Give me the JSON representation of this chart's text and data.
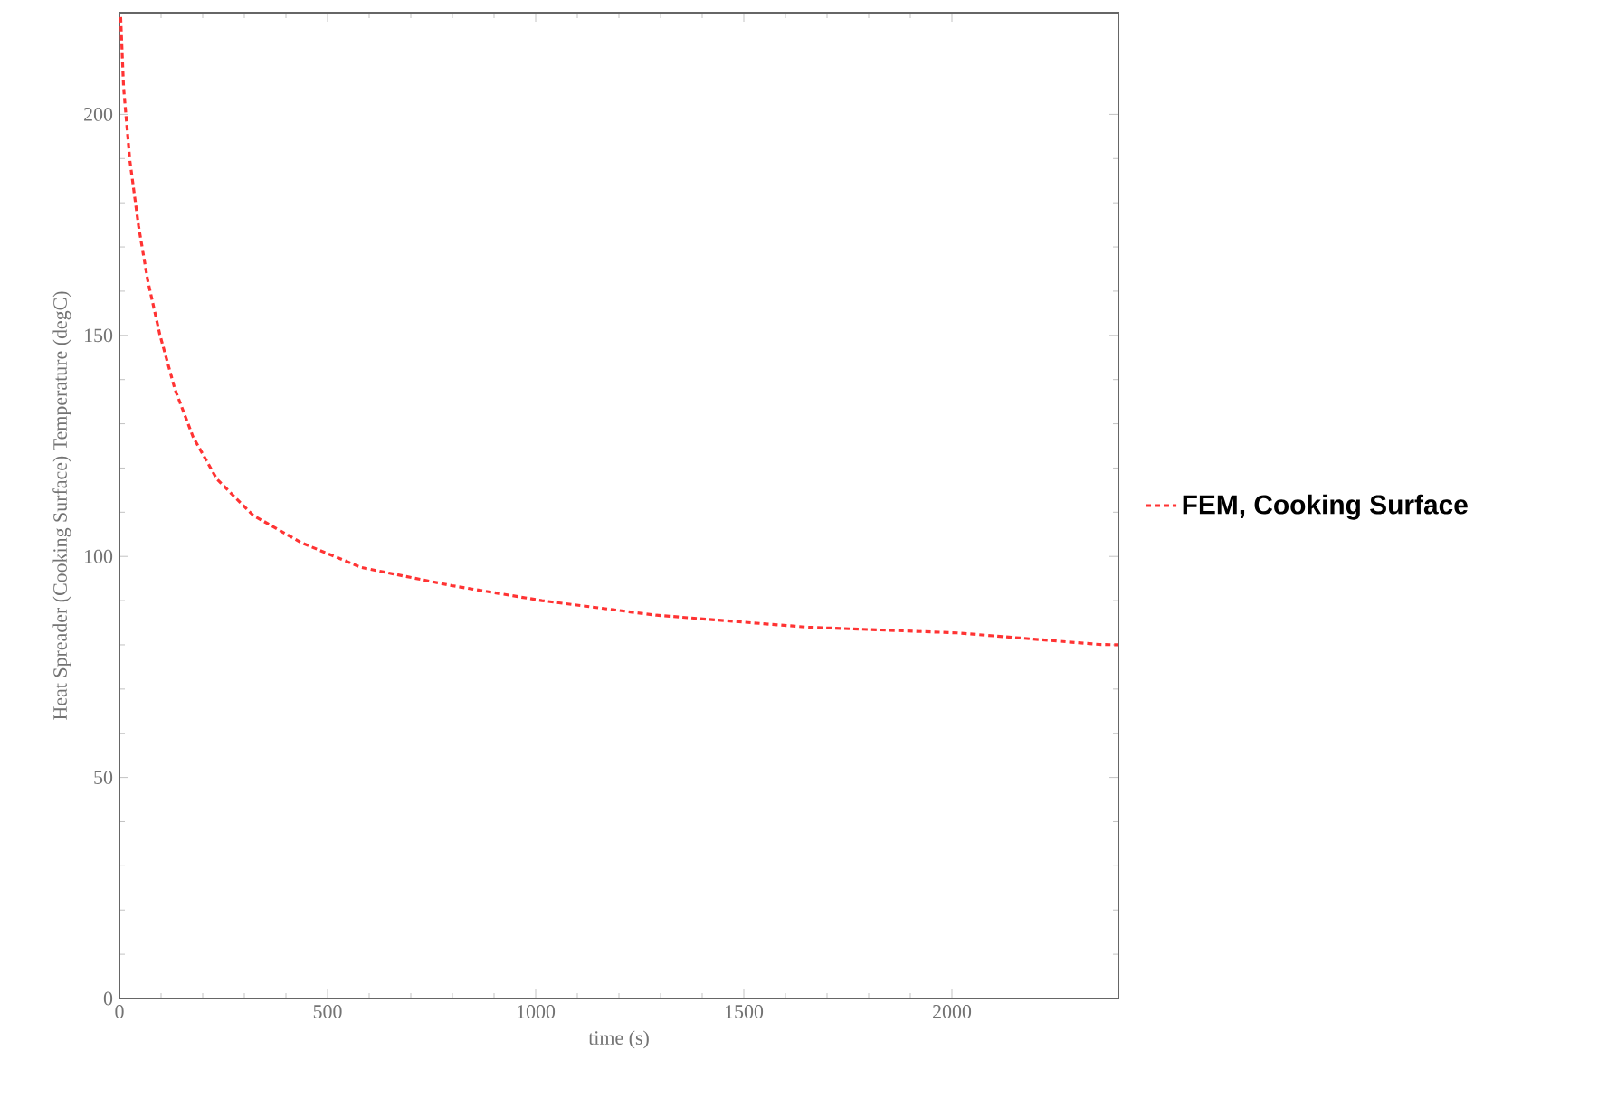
{
  "chart_data": {
    "type": "line",
    "xlabel": "time (s)",
    "ylabel": "Heat Spreader (Cooking Surface) Temperature (degC)",
    "x": [
      3,
      10,
      25,
      46,
      68,
      97,
      133,
      177,
      234,
      321,
      437,
      581,
      798,
      1015,
      1290,
      1651,
      2013,
      2353,
      2400
    ],
    "series": [
      {
        "name": "FEM, Cooking Surface",
        "color": "#ff3333",
        "values": [
          222,
          206,
          189.6,
          174.7,
          162.4,
          150.2,
          137.9,
          127,
          117.5,
          109.3,
          103.1,
          97.5,
          93.4,
          90,
          86.7,
          84,
          82.7,
          80.1,
          80
        ]
      }
    ],
    "xlim": [
      0,
      2400
    ],
    "ylim": [
      0,
      223
    ],
    "xticks": [
      0,
      500,
      1000,
      1500,
      2000
    ],
    "yticks": [
      0,
      50,
      100,
      150,
      200
    ],
    "legend": "right",
    "line_style": "dashed"
  }
}
